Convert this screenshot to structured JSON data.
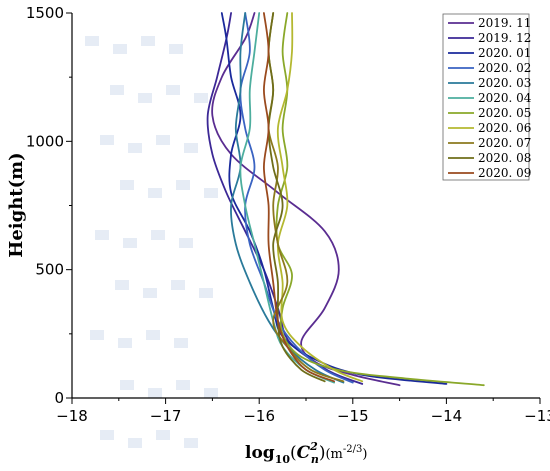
{
  "chart_data": {
    "type": "line",
    "xlabel_main": "log",
    "xlabel_sub": "10",
    "xlabel_paren_open": "(",
    "xlabel_var": "C",
    "xlabel_var_sup": "2",
    "xlabel_var_sub": "n",
    "xlabel_paren_close": ")",
    "xlabel_unit": "(m",
    "xlabel_unit_sup": "-2/3",
    "xlabel_unit_close": ")",
    "ylabel": "Height(m)",
    "xlim": [
      -18,
      -13
    ],
    "ylim": [
      0,
      1500
    ],
    "x_ticks": [
      -18,
      -17,
      -16,
      -15,
      -14,
      -13
    ],
    "x_tick_labels": [
      "−18",
      "−17",
      "−16",
      "−15",
      "−14",
      "−13"
    ],
    "y_ticks": [
      0,
      500,
      1000,
      1500
    ],
    "y_tick_labels": [
      "0",
      "500",
      "1000",
      "1500"
    ],
    "legend_position": "top-right",
    "series": [
      {
        "name": "2019. 11",
        "color": "#5a2d91",
        "points": [
          [
            -14.5,
            50
          ],
          [
            -15.0,
            90
          ],
          [
            -15.4,
            140
          ],
          [
            -15.55,
            220
          ],
          [
            -15.3,
            350
          ],
          [
            -15.15,
            500
          ],
          [
            -15.3,
            650
          ],
          [
            -15.8,
            800
          ],
          [
            -16.3,
            950
          ],
          [
            -16.5,
            1100
          ],
          [
            -16.4,
            1250
          ],
          [
            -16.15,
            1400
          ],
          [
            -16.05,
            1500
          ]
        ]
      },
      {
        "name": "2019. 12",
        "color": "#3c2896",
        "points": [
          [
            -14.9,
            55
          ],
          [
            -15.2,
            95
          ],
          [
            -15.45,
            150
          ],
          [
            -15.7,
            230
          ],
          [
            -15.8,
            350
          ],
          [
            -15.95,
            500
          ],
          [
            -16.15,
            650
          ],
          [
            -16.35,
            800
          ],
          [
            -16.5,
            950
          ],
          [
            -16.55,
            1100
          ],
          [
            -16.45,
            1250
          ],
          [
            -16.35,
            1400
          ],
          [
            -16.3,
            1500
          ]
        ]
      },
      {
        "name": "2020. 01",
        "color": "#1a2a9c",
        "points": [
          [
            -14.0,
            55
          ],
          [
            -14.9,
            90
          ],
          [
            -15.4,
            150
          ],
          [
            -15.75,
            240
          ],
          [
            -15.85,
            350
          ],
          [
            -15.95,
            500
          ],
          [
            -16.1,
            650
          ],
          [
            -16.3,
            800
          ],
          [
            -16.3,
            950
          ],
          [
            -16.2,
            1100
          ],
          [
            -16.3,
            1250
          ],
          [
            -16.35,
            1400
          ],
          [
            -16.4,
            1500
          ]
        ]
      },
      {
        "name": "2020. 02",
        "color": "#3a63c2",
        "points": [
          [
            -15.0,
            60
          ],
          [
            -15.3,
            110
          ],
          [
            -15.6,
            200
          ],
          [
            -15.8,
            300
          ],
          [
            -15.95,
            450
          ],
          [
            -16.1,
            600
          ],
          [
            -16.15,
            750
          ],
          [
            -16.05,
            900
          ],
          [
            -16.15,
            1050
          ],
          [
            -16.2,
            1200
          ],
          [
            -16.1,
            1350
          ],
          [
            -16.15,
            1500
          ]
        ]
      },
      {
        "name": "2020. 03",
        "color": "#2a7a9a",
        "points": [
          [
            -15.1,
            60
          ],
          [
            -15.4,
            110
          ],
          [
            -15.7,
            200
          ],
          [
            -15.9,
            300
          ],
          [
            -16.1,
            450
          ],
          [
            -16.25,
            600
          ],
          [
            -16.3,
            750
          ],
          [
            -16.2,
            900
          ],
          [
            -16.25,
            1050
          ],
          [
            -16.2,
            1200
          ],
          [
            -16.2,
            1350
          ],
          [
            -16.15,
            1500
          ]
        ]
      },
      {
        "name": "2020. 04",
        "color": "#4dae9e",
        "points": [
          [
            -15.2,
            60
          ],
          [
            -15.5,
            110
          ],
          [
            -15.75,
            200
          ],
          [
            -15.85,
            300
          ],
          [
            -15.95,
            450
          ],
          [
            -16.05,
            600
          ],
          [
            -16.15,
            750
          ],
          [
            -16.2,
            900
          ],
          [
            -16.1,
            1050
          ],
          [
            -16.1,
            1200
          ],
          [
            -16.05,
            1350
          ],
          [
            -16.0,
            1500
          ]
        ]
      },
      {
        "name": "2020. 05",
        "color": "#8aa82a",
        "points": [
          [
            -13.6,
            50
          ],
          [
            -14.4,
            75
          ],
          [
            -15.1,
            105
          ],
          [
            -15.55,
            160
          ],
          [
            -15.75,
            250
          ],
          [
            -15.75,
            350
          ],
          [
            -15.65,
            480
          ],
          [
            -15.8,
            600
          ],
          [
            -15.8,
            750
          ],
          [
            -15.7,
            900
          ],
          [
            -15.75,
            1050
          ],
          [
            -15.7,
            1200
          ],
          [
            -15.75,
            1350
          ],
          [
            -15.7,
            1500
          ]
        ]
      },
      {
        "name": "2020. 06",
        "color": "#b4b830",
        "points": [
          [
            -14.9,
            65
          ],
          [
            -15.2,
            110
          ],
          [
            -15.55,
            200
          ],
          [
            -15.75,
            300
          ],
          [
            -15.75,
            450
          ],
          [
            -15.8,
            600
          ],
          [
            -15.7,
            750
          ],
          [
            -15.75,
            900
          ],
          [
            -15.8,
            1050
          ],
          [
            -15.7,
            1200
          ],
          [
            -15.65,
            1350
          ],
          [
            -15.65,
            1500
          ]
        ]
      },
      {
        "name": "2020. 07",
        "color": "#8c7a1e",
        "points": [
          [
            -15.1,
            65
          ],
          [
            -15.45,
            110
          ],
          [
            -15.7,
            200
          ],
          [
            -15.85,
            300
          ],
          [
            -15.7,
            450
          ],
          [
            -15.8,
            600
          ],
          [
            -15.85,
            750
          ],
          [
            -15.8,
            900
          ],
          [
            -15.9,
            1050
          ],
          [
            -15.85,
            1200
          ],
          [
            -15.9,
            1350
          ],
          [
            -15.85,
            1500
          ]
        ]
      },
      {
        "name": "2020. 08",
        "color": "#6f6e1a",
        "points": [
          [
            -15.3,
            65
          ],
          [
            -15.55,
            110
          ],
          [
            -15.75,
            200
          ],
          [
            -15.8,
            300
          ],
          [
            -15.8,
            450
          ],
          [
            -15.85,
            600
          ],
          [
            -15.75,
            750
          ],
          [
            -15.85,
            900
          ],
          [
            -15.9,
            1050
          ],
          [
            -15.85,
            1200
          ],
          [
            -15.9,
            1350
          ],
          [
            -15.85,
            1500
          ]
        ]
      },
      {
        "name": "2020. 09",
        "color": "#9a4a1e",
        "points": [
          [
            -15.2,
            65
          ],
          [
            -15.5,
            110
          ],
          [
            -15.7,
            200
          ],
          [
            -15.8,
            300
          ],
          [
            -15.85,
            450
          ],
          [
            -15.9,
            600
          ],
          [
            -15.9,
            750
          ],
          [
            -15.95,
            900
          ],
          [
            -15.9,
            1050
          ],
          [
            -15.95,
            1200
          ],
          [
            -15.9,
            1350
          ],
          [
            -15.95,
            1500
          ]
        ]
      }
    ]
  }
}
